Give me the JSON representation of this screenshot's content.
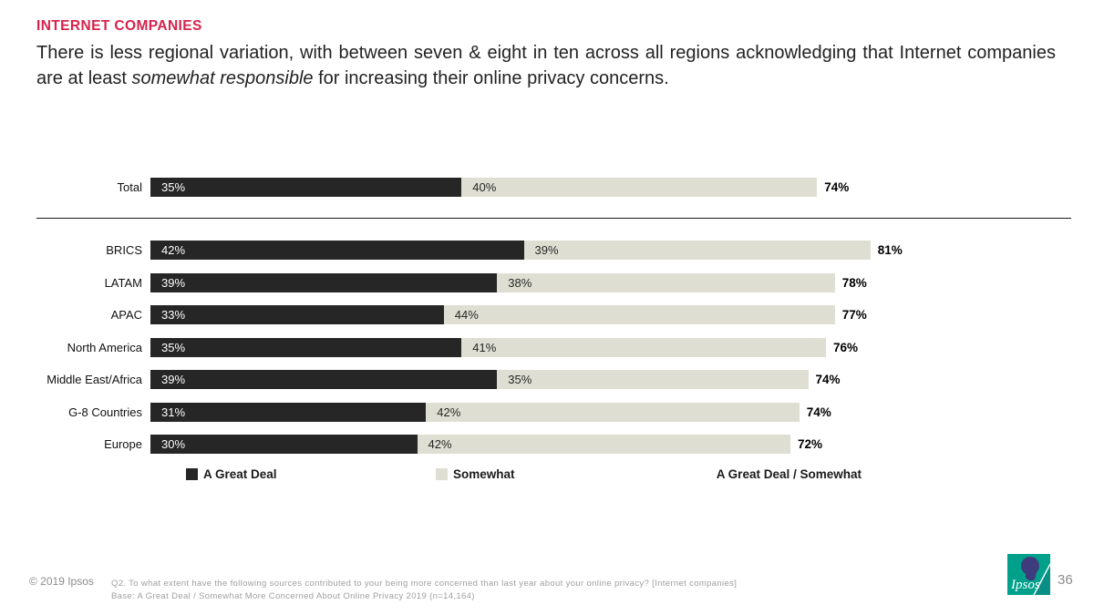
{
  "slide": {
    "kicker": "INTERNET COMPANIES",
    "lede_before": "There is less regional variation, with between seven & eight in ten across all regions acknowledging that Internet companies are at least ",
    "lede_italic": "somewhat responsible",
    "lede_after": " for increasing their online privacy concerns.",
    "accent_color": "#d6224c"
  },
  "chart_data": {
    "type": "bar",
    "orientation": "horizontal",
    "stacked": true,
    "value_unit": "%",
    "gridlines": false,
    "legend_position": "bottom",
    "axis_range": [
      0,
      100
    ],
    "categories": [
      "Total",
      "BRICS",
      "LATAM",
      "APAC",
      "North America",
      "Middle East/Africa",
      "G-8 Countries",
      "Europe"
    ],
    "series": [
      {
        "name": "A Great Deal",
        "color": "#262626",
        "values": [
          35,
          42,
          39,
          33,
          35,
          39,
          31,
          30
        ]
      },
      {
        "name": "Somewhat",
        "color": "#dedfd2",
        "values": [
          40,
          39,
          38,
          44,
          41,
          35,
          42,
          42
        ]
      }
    ],
    "totals": {
      "name": "A Great Deal / Somewhat",
      "values": [
        74,
        81,
        78,
        77,
        76,
        74,
        74,
        72
      ]
    }
  },
  "legend": {
    "items": [
      {
        "label": "A Great Deal",
        "swatch": "#262626"
      },
      {
        "label": "Somewhat",
        "swatch": "#dedfd2"
      },
      {
        "label": "A Great Deal / Somewhat",
        "swatch": null
      }
    ]
  },
  "footer": {
    "copyright": "© 2019 Ipsos",
    "source_line1": "Q2. To what extent have the following sources contributed to your being more concerned than last year about your online privacy? [Internet companies]",
    "source_line2": "Base: A Great Deal / Somewhat More Concerned About Online Privacy 2019 (n=14,164)",
    "page_number": "36",
    "logo_text": "Ipsos",
    "logo_teal": "#00a08b",
    "logo_navy": "#3f3c7e"
  }
}
